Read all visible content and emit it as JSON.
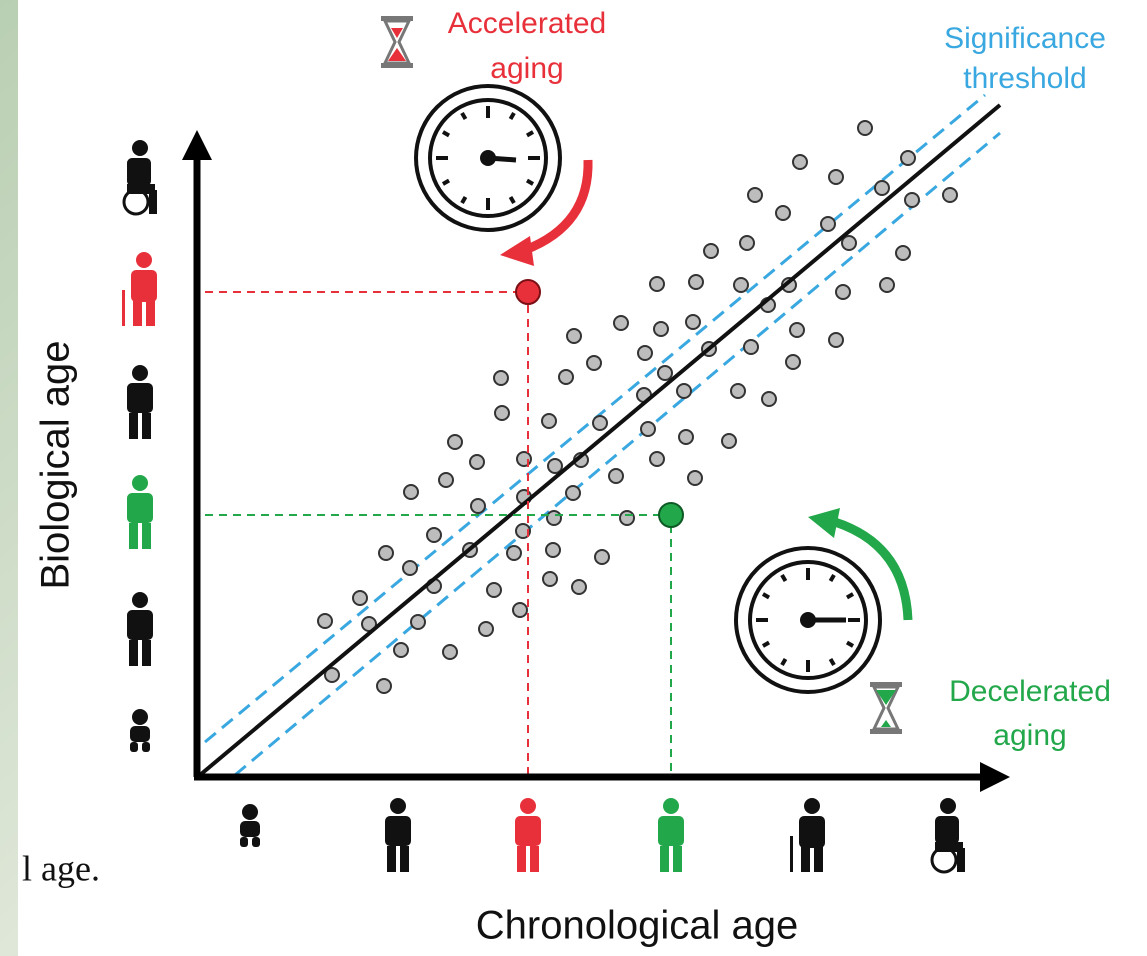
{
  "figure": {
    "accelerated": [
      "Accelerated",
      "aging"
    ],
    "threshold": [
      "Significance",
      "threshold"
    ],
    "decelerated": [
      "Decelerated",
      "aging"
    ],
    "y_axis_label": "Biological age",
    "x_axis_label": "Chronological age",
    "fragment": "l age."
  }
}
